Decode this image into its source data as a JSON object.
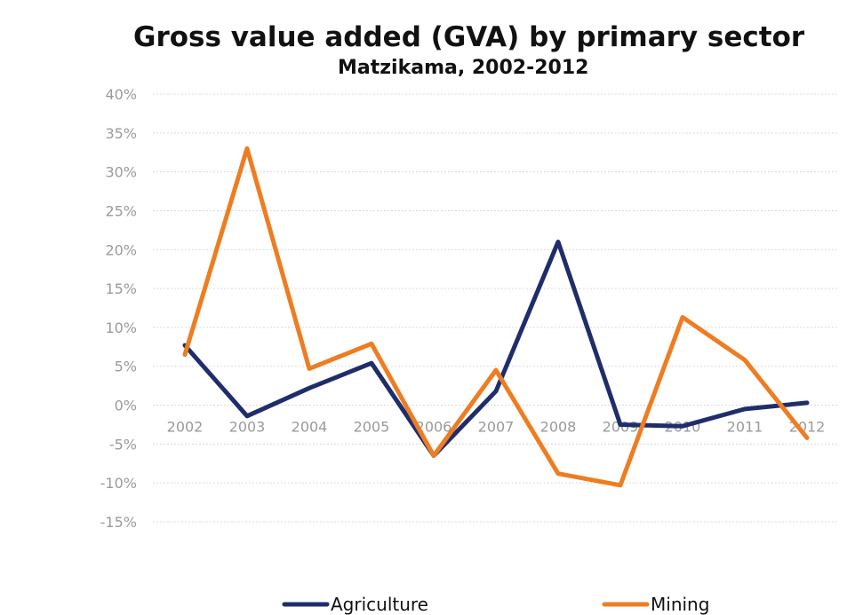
{
  "chart_data": {
    "type": "line",
    "title": "Gross value added (GVA) by primary sector",
    "subtitle": "Matzikama, 2002-2012",
    "categories": [
      "2002",
      "2003",
      "2004",
      "2005",
      "2006",
      "2007",
      "2008",
      "2009",
      "2010",
      "2011",
      "2012"
    ],
    "series": [
      {
        "name": "Agriculture",
        "color": "#1f2d6b",
        "values": [
          7.7,
          -1.4,
          2.2,
          5.4,
          -6.5,
          1.8,
          21.0,
          -2.5,
          -2.7,
          -0.5,
          0.3
        ]
      },
      {
        "name": "Mining",
        "color": "#ee7d22",
        "values": [
          6.5,
          33.0,
          4.7,
          7.9,
          -6.5,
          4.5,
          -8.8,
          -10.3,
          11.3,
          5.8,
          -4.2
        ]
      }
    ],
    "yticks": [
      "40%",
      "35%",
      "30%",
      "25%",
      "20%",
      "15%",
      "10%",
      "5%",
      "0%",
      "-5%",
      "-10%",
      "-15%"
    ],
    "ylim": [
      -15,
      40
    ],
    "ytick_step": 5,
    "y_unit": "%",
    "grid": true,
    "legend_position": "bottom"
  }
}
